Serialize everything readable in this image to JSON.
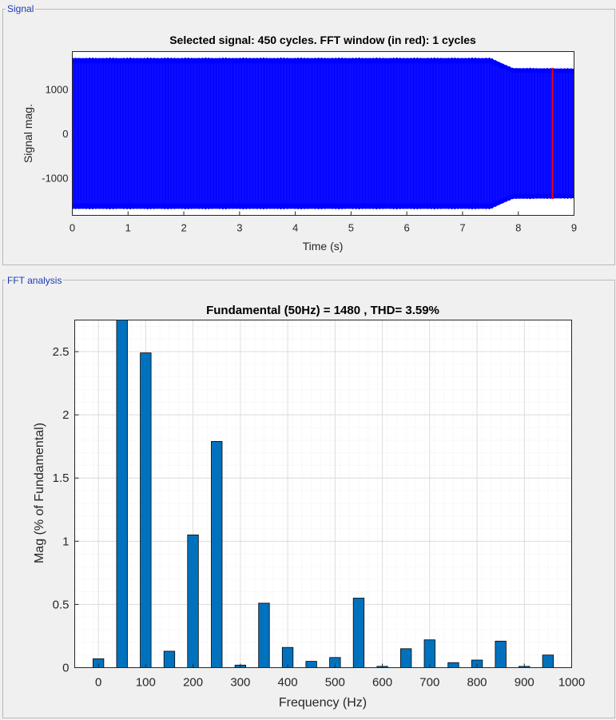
{
  "panels": {
    "signal_title": "Signal",
    "fft_title": "FFT analysis"
  },
  "colors": {
    "signal": "#0000ff",
    "fft_window": "#ff0000",
    "bar_fill": "#0072bd",
    "bar_edge": "#000000",
    "grid": "#dcdcdc"
  },
  "chart_data": [
    {
      "type": "line",
      "title": "Selected signal: 450 cycles. FFT window (in red): 1 cycles",
      "xlabel": "Time (s)",
      "ylabel": "Signal mag.",
      "xlim": [
        0,
        9
      ],
      "ylim": [
        -1850,
        1850
      ],
      "xticks": [
        "0",
        "1",
        "2",
        "3",
        "4",
        "5",
        "6",
        "7",
        "8",
        "9"
      ],
      "yticks": [
        "1000",
        "0",
        "-1000"
      ],
      "ytick_values": [
        1000,
        0,
        -1000
      ],
      "series": [
        {
          "frequency_hz": 50,
          "envelope": {
            "t": [
              0,
              7.5,
              7.9,
              9
            ],
            "amplitude": [
              1720,
              1720,
              1490,
              1480
            ]
          }
        }
      ],
      "fft_window": {
        "start": 8.6,
        "end": 8.62
      }
    },
    {
      "type": "bar",
      "title": "Fundamental (50Hz) = 1480 , THD= 3.59%",
      "xlabel": "Frequency (Hz)",
      "ylabel": "Mag (% of Fundamental)",
      "xlim": [
        -50,
        1000
      ],
      "ylim": [
        0,
        2.75
      ],
      "xticks": [
        "0",
        "100",
        "200",
        "300",
        "400",
        "500",
        "600",
        "700",
        "800",
        "900",
        "1000"
      ],
      "yticks": [
        "0",
        "0.5",
        "1",
        "1.5",
        "2",
        "2.5"
      ],
      "x": [
        0,
        50,
        100,
        150,
        200,
        250,
        300,
        350,
        400,
        450,
        500,
        550,
        600,
        650,
        700,
        750,
        800,
        850,
        900,
        950
      ],
      "values": [
        0.07,
        2.75,
        2.49,
        0.13,
        1.05,
        1.79,
        0.02,
        0.51,
        0.16,
        0.05,
        0.08,
        0.55,
        0.01,
        0.15,
        0.22,
        0.04,
        0.06,
        0.21,
        0.01,
        0.1
      ]
    }
  ]
}
